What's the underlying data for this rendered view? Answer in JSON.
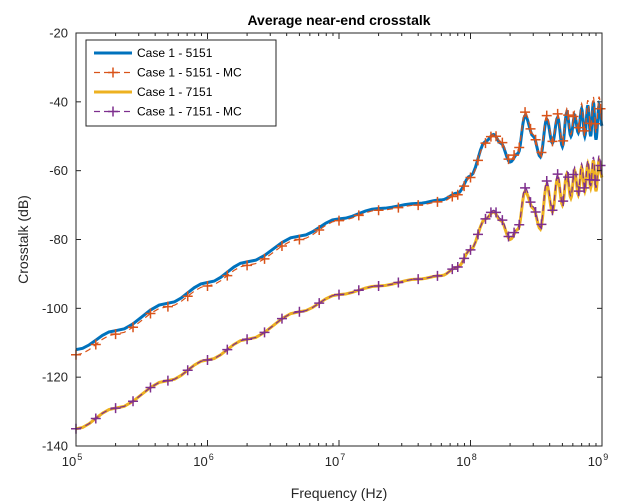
{
  "chart_data": {
    "type": "line",
    "title": "Average near-end crosstalk",
    "xlabel": "Frequency (Hz)",
    "ylabel": "Crosstalk (dB)",
    "x_scale": "log",
    "xlim": [
      100000,
      1000000000
    ],
    "ylim": [
      -140,
      -20
    ],
    "x_ticks": [
      {
        "value": 100000,
        "base": "10",
        "exp": "5"
      },
      {
        "value": 1000000,
        "base": "10",
        "exp": "6"
      },
      {
        "value": 10000000,
        "base": "10",
        "exp": "7"
      },
      {
        "value": 100000000,
        "base": "10",
        "exp": "8"
      },
      {
        "value": 1000000000,
        "base": "10",
        "exp": "9"
      }
    ],
    "y_ticks": [
      -140,
      -120,
      -100,
      -80,
      -60,
      -40,
      -20
    ],
    "grid": false,
    "legend_position": "top-left",
    "series": [
      {
        "name": "Case 1 - 5151",
        "color": "#0072BD",
        "style": "solid",
        "marker": "none",
        "x": [
          100000,
          200000,
          500000,
          1000000,
          2000000,
          5000000,
          10000000,
          20000000,
          40000000,
          60000000,
          80000000,
          100000000,
          130000000,
          150000000,
          170000000,
          200000000,
          230000000,
          260000000,
          300000000,
          340000000,
          380000000,
          420000000,
          460000000,
          500000000,
          540000000,
          580000000,
          620000000,
          660000000,
          700000000,
          740000000,
          780000000,
          820000000,
          860000000,
          900000000,
          950000000,
          1000000000
        ],
        "y": [
          -112,
          -106.5,
          -98.5,
          -92.5,
          -86.5,
          -79,
          -74,
          -71,
          -69.5,
          -68.5,
          -66.5,
          -61.5,
          -51.5,
          -49.5,
          -52,
          -57.5,
          -55,
          -44,
          -50,
          -56,
          -45,
          -52,
          -44.5,
          -53,
          -43,
          -50,
          -44,
          -49,
          -42,
          -50,
          -41,
          -50,
          -40,
          -51,
          -41,
          -47
        ]
      },
      {
        "name": "Case 1 - 5151 - MC",
        "color": "#D95319",
        "style": "dashed",
        "marker": "plus",
        "x": [
          100000,
          200000,
          500000,
          1000000,
          2000000,
          5000000,
          10000000,
          20000000,
          40000000,
          60000000,
          80000000,
          100000000,
          130000000,
          150000000,
          170000000,
          200000000,
          230000000,
          260000000,
          300000000,
          340000000,
          380000000,
          420000000,
          460000000,
          500000000,
          540000000,
          580000000,
          620000000,
          660000000,
          700000000,
          740000000,
          780000000,
          820000000,
          860000000,
          900000000,
          950000000,
          1000000000
        ],
        "y": [
          -113.5,
          -107.5,
          -99.5,
          -93.5,
          -87.5,
          -80,
          -74.5,
          -71.5,
          -70,
          -69,
          -67,
          -62,
          -52,
          -49.5,
          -51.5,
          -57,
          -54,
          -43,
          -49.5,
          -55.5,
          -44,
          -51.5,
          -43.5,
          -52,
          -42,
          -49.5,
          -42.5,
          -48,
          -40.5,
          -49,
          -39.5,
          -48.5,
          -38.5,
          -49,
          -38.5,
          -45.5
        ]
      },
      {
        "name": "Case 1 - 7151",
        "color": "#EDB120",
        "style": "solid",
        "marker": "none",
        "x": [
          100000,
          200000,
          500000,
          1000000,
          2000000,
          5000000,
          10000000,
          20000000,
          40000000,
          60000000,
          80000000,
          100000000,
          130000000,
          150000000,
          170000000,
          200000000,
          230000000,
          260000000,
          300000000,
          340000000,
          380000000,
          420000000,
          460000000,
          500000000,
          540000000,
          580000000,
          620000000,
          660000000,
          700000000,
          740000000,
          780000000,
          820000000,
          860000000,
          900000000,
          950000000,
          1000000000
        ],
        "y": [
          -135,
          -129,
          -121,
          -115,
          -109,
          -101,
          -96,
          -93.5,
          -91.5,
          -90.5,
          -88,
          -83,
          -74,
          -72,
          -74.5,
          -80,
          -77,
          -66,
          -71,
          -77,
          -64,
          -72,
          -62,
          -70,
          -61,
          -68,
          -60,
          -67,
          -59,
          -66,
          -58,
          -65,
          -57,
          -66,
          -57,
          -62
        ]
      },
      {
        "name": "Case 1 - 7151 - MC",
        "color": "#7E2F8E",
        "style": "dashed",
        "marker": "plus",
        "x": [
          100000,
          200000,
          500000,
          1000000,
          2000000,
          5000000,
          10000000,
          20000000,
          40000000,
          60000000,
          80000000,
          100000000,
          130000000,
          150000000,
          170000000,
          200000000,
          230000000,
          260000000,
          300000000,
          340000000,
          380000000,
          420000000,
          460000000,
          500000000,
          540000000,
          580000000,
          620000000,
          660000000,
          700000000,
          740000000,
          780000000,
          820000000,
          860000000,
          900000000,
          950000000,
          1000000000
        ],
        "y": [
          -135,
          -129,
          -121,
          -115,
          -109,
          -101,
          -96,
          -93.5,
          -91.5,
          -90.5,
          -88,
          -83,
          -74,
          -71.5,
          -74,
          -79.5,
          -76.5,
          -65,
          -70.5,
          -76.5,
          -63,
          -71.5,
          -61,
          -69.5,
          -60,
          -67.5,
          -59,
          -66.5,
          -58,
          -65.5,
          -57,
          -64.5,
          -56,
          -65,
          -55.5,
          -61.5
        ]
      }
    ]
  }
}
